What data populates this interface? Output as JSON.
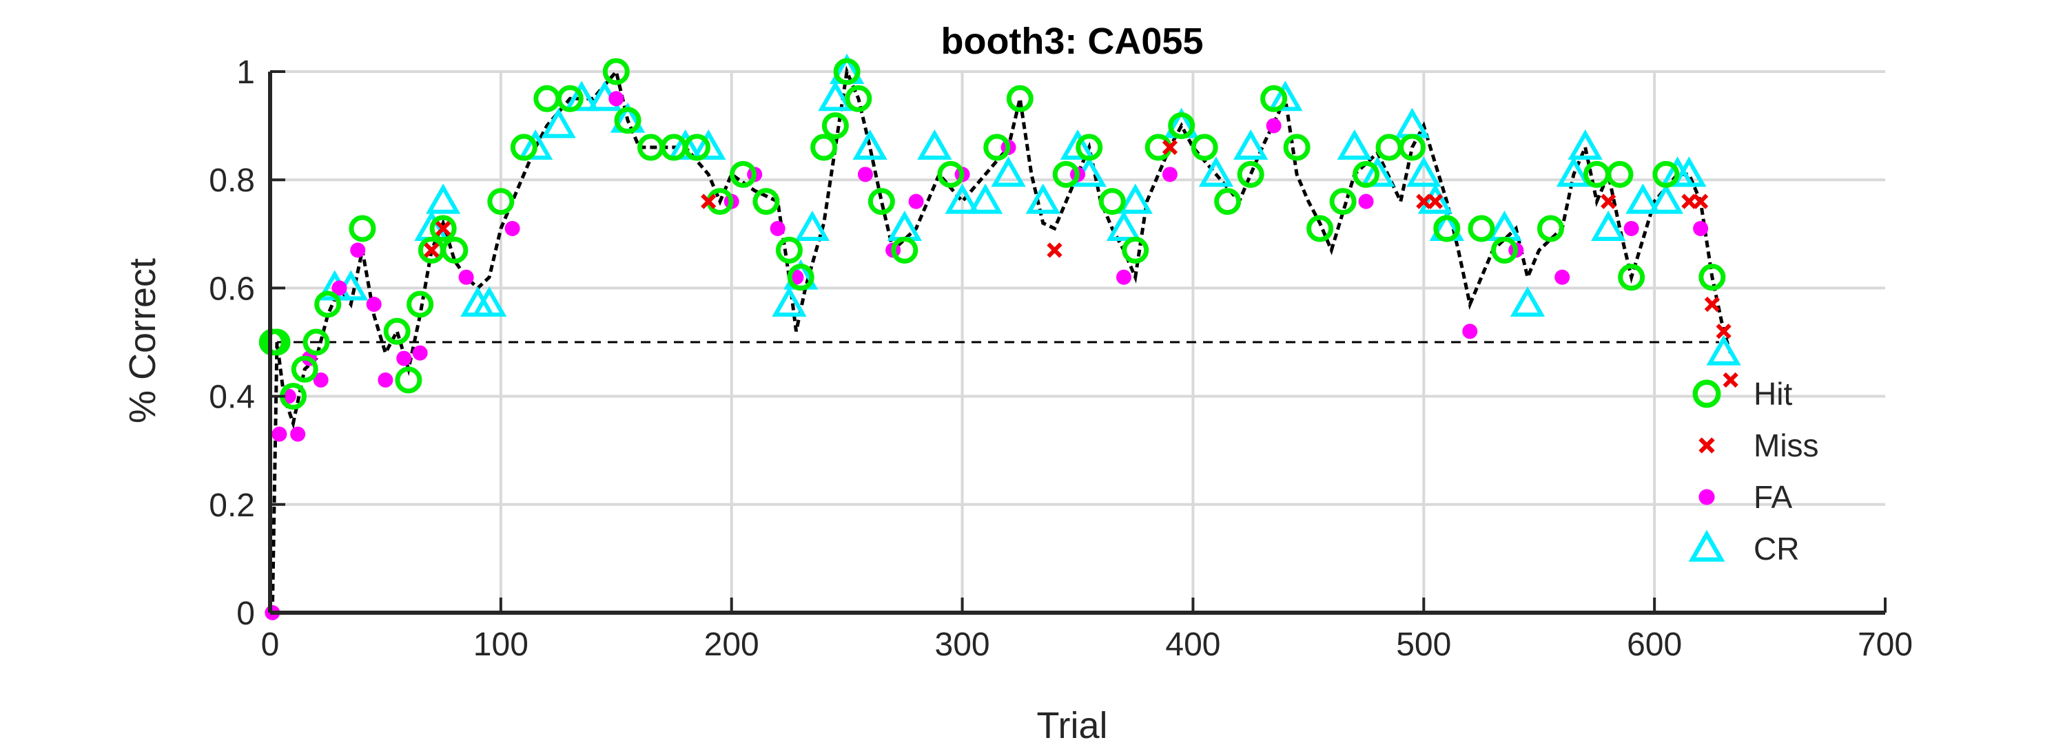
{
  "chart_data": {
    "type": "scatter",
    "title": "booth3: CA055",
    "xlabel": "Trial",
    "ylabel": "% Correct",
    "xlim": [
      0,
      700
    ],
    "ylim": [
      0,
      1
    ],
    "xticks": [
      "0",
      "100",
      "200",
      "300",
      "400",
      "500",
      "600",
      "700"
    ],
    "yticks": [
      "0",
      "0.2",
      "0.4",
      "0.6",
      "0.8",
      "1"
    ],
    "grid": true,
    "legend_position": "right",
    "chance_line": 0.5,
    "colors": {
      "hit": "#00ee00",
      "miss": "#ee0000",
      "fa": "#ff00ff",
      "cr": "#00eeff",
      "line": "#000000",
      "grid": "#d9d9d9"
    },
    "legend": [
      "Hit",
      "Miss",
      "FA",
      "CR"
    ],
    "performance_curve": {
      "x": [
        1,
        3,
        6,
        10,
        15,
        20,
        25,
        30,
        35,
        40,
        45,
        50,
        55,
        60,
        65,
        70,
        75,
        80,
        85,
        90,
        95,
        100,
        105,
        110,
        115,
        120,
        130,
        140,
        150,
        155,
        160,
        170,
        180,
        190,
        195,
        200,
        210,
        220,
        225,
        228,
        232,
        240,
        245,
        250,
        255,
        260,
        265,
        270,
        280,
        290,
        300,
        310,
        320,
        325,
        330,
        335,
        340,
        350,
        355,
        360,
        365,
        370,
        375,
        380,
        390,
        395,
        400,
        410,
        420,
        430,
        440,
        445,
        450,
        455,
        460,
        470,
        480,
        490,
        495,
        500,
        510,
        515,
        520,
        525,
        530,
        540,
        545,
        550,
        560,
        565,
        570,
        575,
        580,
        585,
        590,
        600,
        610,
        615,
        620,
        625,
        630,
        633
      ],
      "y": [
        0.0,
        0.5,
        0.4,
        0.35,
        0.45,
        0.47,
        0.55,
        0.6,
        0.57,
        0.67,
        0.55,
        0.48,
        0.52,
        0.45,
        0.55,
        0.67,
        0.72,
        0.65,
        0.62,
        0.6,
        0.62,
        0.71,
        0.76,
        0.81,
        0.86,
        0.9,
        0.95,
        0.95,
        1.0,
        0.91,
        0.86,
        0.86,
        0.86,
        0.81,
        0.76,
        0.81,
        0.78,
        0.76,
        0.62,
        0.52,
        0.6,
        0.72,
        0.86,
        1.0,
        0.95,
        0.86,
        0.76,
        0.67,
        0.71,
        0.81,
        0.76,
        0.81,
        0.86,
        0.95,
        0.81,
        0.72,
        0.71,
        0.81,
        0.86,
        0.76,
        0.71,
        0.67,
        0.62,
        0.76,
        0.86,
        0.9,
        0.86,
        0.81,
        0.76,
        0.86,
        0.95,
        0.81,
        0.76,
        0.72,
        0.67,
        0.81,
        0.85,
        0.76,
        0.86,
        0.9,
        0.76,
        0.67,
        0.57,
        0.62,
        0.67,
        0.71,
        0.62,
        0.67,
        0.71,
        0.81,
        0.86,
        0.76,
        0.81,
        0.71,
        0.62,
        0.76,
        0.81,
        0.81,
        0.76,
        0.62,
        0.52,
        0.48
      ]
    },
    "series": [
      {
        "name": "Hit",
        "marker": "circle",
        "x": [
          1,
          3,
          10,
          15,
          20,
          25,
          40,
          55,
          60,
          65,
          70,
          75,
          80,
          100,
          110,
          120,
          130,
          150,
          155,
          165,
          175,
          185,
          195,
          205,
          215,
          225,
          230,
          240,
          245,
          250,
          255,
          265,
          275,
          295,
          315,
          325,
          345,
          355,
          365,
          375,
          385,
          395,
          405,
          415,
          425,
          435,
          445,
          455,
          465,
          475,
          485,
          495,
          510,
          525,
          535,
          555,
          575,
          585,
          590,
          605,
          625
        ],
        "y": [
          0.5,
          0.5,
          0.4,
          0.45,
          0.5,
          0.57,
          0.71,
          0.52,
          0.43,
          0.57,
          0.67,
          0.71,
          0.67,
          0.76,
          0.86,
          0.95,
          0.95,
          1.0,
          0.91,
          0.86,
          0.86,
          0.86,
          0.76,
          0.81,
          0.76,
          0.67,
          0.62,
          0.86,
          0.9,
          1.0,
          0.95,
          0.76,
          0.67,
          0.81,
          0.86,
          0.95,
          0.81,
          0.86,
          0.76,
          0.67,
          0.86,
          0.9,
          0.86,
          0.76,
          0.81,
          0.95,
          0.86,
          0.71,
          0.76,
          0.81,
          0.86,
          0.86,
          0.71,
          0.71,
          0.67,
          0.71,
          0.81,
          0.81,
          0.62,
          0.81,
          0.62
        ]
      },
      {
        "name": "Miss",
        "marker": "x",
        "x": [
          70,
          75,
          190,
          340,
          390,
          500,
          505,
          580,
          615,
          620,
          625,
          630,
          633
        ],
        "y": [
          0.67,
          0.71,
          0.76,
          0.67,
          0.86,
          0.76,
          0.76,
          0.76,
          0.76,
          0.76,
          0.57,
          0.52,
          0.43
        ]
      },
      {
        "name": "FA",
        "marker": "dot",
        "x": [
          1,
          4,
          8,
          12,
          17,
          22,
          30,
          38,
          45,
          50,
          58,
          65,
          85,
          105,
          150,
          200,
          210,
          220,
          228,
          258,
          270,
          280,
          300,
          320,
          350,
          370,
          390,
          435,
          475,
          520,
          540,
          560,
          590,
          620
        ],
        "y": [
          0.0,
          0.33,
          0.4,
          0.33,
          0.47,
          0.43,
          0.6,
          0.67,
          0.57,
          0.43,
          0.47,
          0.48,
          0.62,
          0.71,
          0.95,
          0.76,
          0.81,
          0.71,
          0.62,
          0.81,
          0.67,
          0.76,
          0.81,
          0.86,
          0.81,
          0.62,
          0.81,
          0.9,
          0.76,
          0.52,
          0.67,
          0.62,
          0.71,
          0.71
        ]
      },
      {
        "name": "CR",
        "marker": "triangle",
        "x": [
          28,
          35,
          70,
          75,
          90,
          95,
          115,
          125,
          135,
          145,
          155,
          180,
          190,
          225,
          230,
          235,
          245,
          250,
          260,
          275,
          288,
          300,
          310,
          320,
          335,
          350,
          355,
          370,
          375,
          395,
          410,
          425,
          440,
          470,
          480,
          495,
          500,
          505,
          510,
          535,
          545,
          565,
          570,
          580,
          595,
          605,
          610,
          615,
          630
        ],
        "y": [
          0.6,
          0.6,
          0.71,
          0.76,
          0.57,
          0.57,
          0.86,
          0.9,
          0.95,
          0.95,
          0.91,
          0.86,
          0.86,
          0.57,
          0.62,
          0.71,
          0.95,
          1.0,
          0.86,
          0.71,
          0.86,
          0.76,
          0.76,
          0.81,
          0.76,
          0.86,
          0.81,
          0.71,
          0.76,
          0.9,
          0.81,
          0.86,
          0.95,
          0.86,
          0.81,
          0.9,
          0.81,
          0.76,
          0.71,
          0.71,
          0.57,
          0.81,
          0.86,
          0.71,
          0.76,
          0.76,
          0.81,
          0.81,
          0.48
        ]
      }
    ]
  }
}
